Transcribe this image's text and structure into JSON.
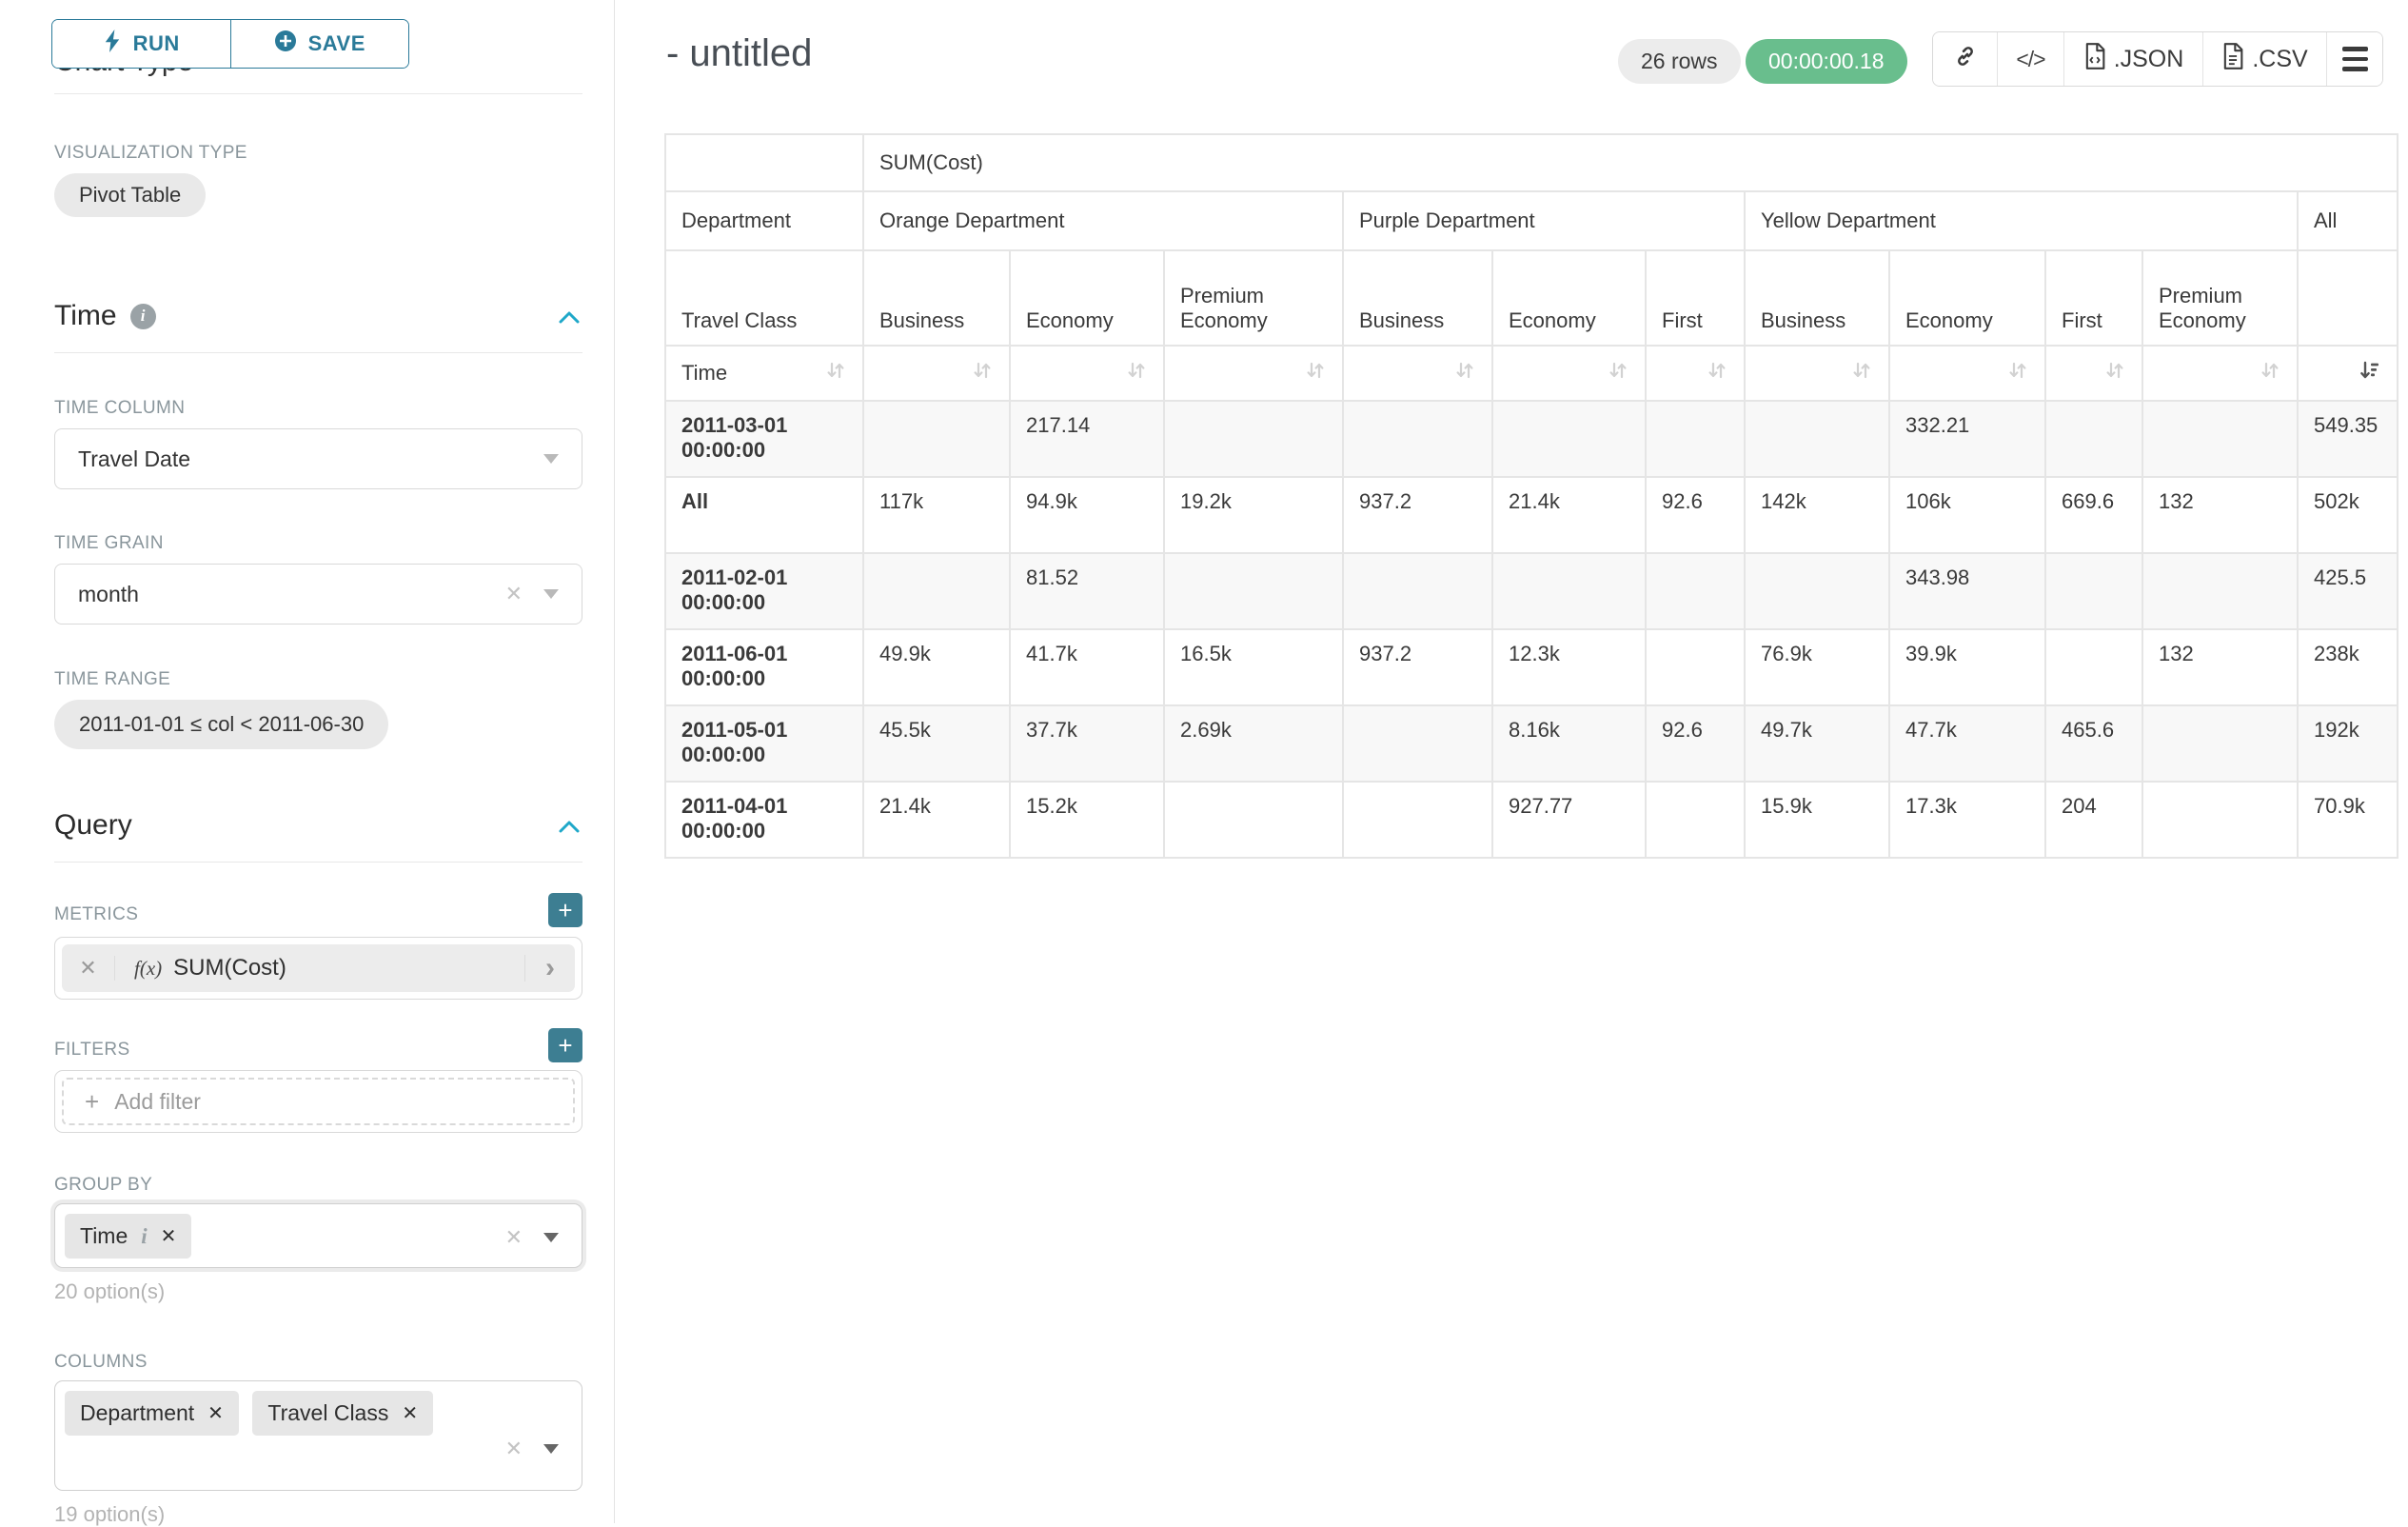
{
  "panel": {
    "run_label": "RUN",
    "save_label": "SAVE",
    "chart_type_heading": "Chart Type",
    "visualization": {
      "label": "VISUALIZATION TYPE",
      "value": "Pivot Table"
    },
    "time_section": {
      "title": "Time",
      "time_column_label": "TIME COLUMN",
      "time_column_value": "Travel Date",
      "time_grain_label": "TIME GRAIN",
      "time_grain_value": "month",
      "time_range_label": "TIME RANGE",
      "time_range_value": "2011-01-01 ≤ col < 2011-06-30"
    },
    "query_section": {
      "title": "Query",
      "metrics_label": "METRICS",
      "metric_fx": "f(x)",
      "metric_value": "SUM(Cost)",
      "metric_clear": "✕",
      "metric_expand": "›",
      "filters_label": "FILTERS",
      "add_filter_label": "Add filter",
      "group_by_label": "GROUP BY",
      "group_by_token": "Time",
      "group_by_token_info": "i",
      "group_by_token_close": "✕",
      "group_by_options": "20 option(s)",
      "columns_label": "COLUMNS",
      "columns_token_1": "Department",
      "columns_token_2": "Travel Class",
      "columns_token_close": "✕",
      "columns_options": "19 option(s)"
    }
  },
  "header": {
    "title": "- untitled",
    "row_count": "26 rows",
    "timer": "00:00:00.18",
    "code_icon_glyph": "</>",
    "json_label": ".JSON",
    "csv_label": ".CSV"
  },
  "main": {
    "table": {
      "metric_header": "SUM(Cost)",
      "corner": {
        "department": "Department",
        "travel_class": "Travel Class",
        "time": "Time"
      },
      "groups": [
        {
          "label": "Orange Department",
          "cols": [
            "Business",
            "Economy",
            "Premium Economy"
          ]
        },
        {
          "label": "Purple Department",
          "cols": [
            "Business",
            "Economy",
            "First"
          ]
        },
        {
          "label": "Yellow Department",
          "cols": [
            "Business",
            "Economy",
            "First",
            "Premium Economy"
          ]
        },
        {
          "label": "All",
          "cols": [
            ""
          ]
        }
      ],
      "rows": [
        {
          "label": "2011-03-01 00:00:00",
          "values": [
            "",
            "217.14",
            "",
            "",
            "",
            "",
            "",
            "332.21",
            "",
            "",
            "549.35"
          ]
        },
        {
          "label": "All",
          "values": [
            "117k",
            "94.9k",
            "19.2k",
            "937.2",
            "21.4k",
            "92.6",
            "142k",
            "106k",
            "669.6",
            "132",
            "502k"
          ]
        },
        {
          "label": "2011-02-01 00:00:00",
          "values": [
            "",
            "81.52",
            "",
            "",
            "",
            "",
            "",
            "343.98",
            "",
            "",
            "425.5"
          ]
        },
        {
          "label": "2011-06-01 00:00:00",
          "values": [
            "49.9k",
            "41.7k",
            "16.5k",
            "937.2",
            "12.3k",
            "",
            "76.9k",
            "39.9k",
            "",
            "132",
            "238k"
          ]
        },
        {
          "label": "2011-05-01 00:00:00",
          "values": [
            "45.5k",
            "37.7k",
            "2.69k",
            "",
            "8.16k",
            "92.6",
            "49.7k",
            "47.7k",
            "465.6",
            "",
            "192k"
          ]
        },
        {
          "label": "2011-04-01 00:00:00",
          "values": [
            "21.4k",
            "15.2k",
            "",
            "",
            "927.77",
            "",
            "15.9k",
            "17.3k",
            "204",
            "",
            "70.9k"
          ]
        }
      ]
    }
  },
  "colors": {
    "accent_teal": "#2a7a99",
    "add_button_teal": "#3d7e92",
    "success_green": "#69be8d",
    "chevron_blue": "#1fa8c9"
  }
}
